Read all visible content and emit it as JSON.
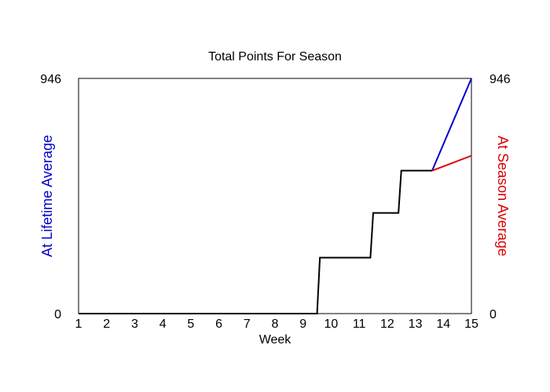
{
  "chart_data": {
    "type": "line",
    "title": "Total Points For Season",
    "xlabel": "Week",
    "ylabel_left": "At Lifetime Average",
    "ylabel_right": "At Season Average",
    "xlim": [
      1,
      15
    ],
    "ylim": [
      0,
      946
    ],
    "x_ticks": [
      "1",
      "2",
      "3",
      "4",
      "5",
      "6",
      "7",
      "8",
      "9",
      "10",
      "11",
      "12",
      "13",
      "14",
      "15"
    ],
    "y_ticks_left": [
      "0",
      "946"
    ],
    "y_ticks_right": [
      "0",
      "946"
    ],
    "grid": false,
    "series": [
      {
        "color": "#000000",
        "x": [
          1,
          9.5,
          9.6,
          11.4,
          11.5,
          12.4,
          12.5,
          13.6
        ],
        "y": [
          0,
          0,
          225,
          225,
          405,
          405,
          575,
          575
        ]
      },
      {
        "name": "At Lifetime Average",
        "color": "#0000cc",
        "x": [
          13.6,
          15
        ],
        "y": [
          575,
          946
        ]
      },
      {
        "name": "At Season Average",
        "color": "#dd0000",
        "x": [
          13.6,
          15
        ],
        "y": [
          575,
          635
        ]
      }
    ]
  }
}
